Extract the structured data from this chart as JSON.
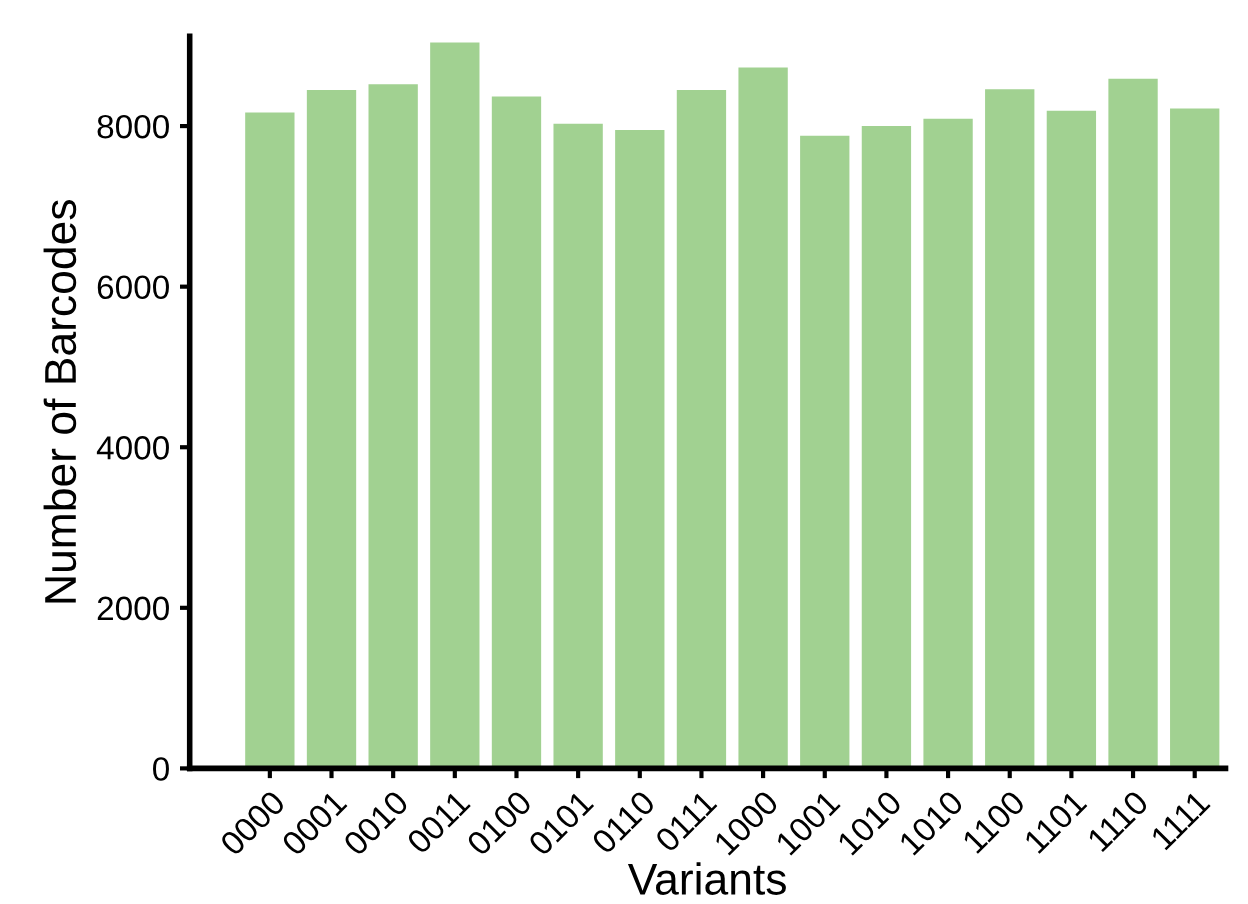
{
  "chart_data": {
    "type": "bar",
    "xlabel": "Variants",
    "ylabel": "Number of Barcodes",
    "categories": [
      "0000",
      "0001",
      "0010",
      "0011",
      "0100",
      "0101",
      "0110",
      "0111",
      "1000",
      "1001",
      "1010",
      "1010",
      "1100",
      "1101",
      "1110",
      "1111"
    ],
    "values": [
      8170,
      8450,
      8520,
      9040,
      8370,
      8030,
      7950,
      8450,
      8730,
      7880,
      8000,
      8090,
      8460,
      8190,
      8590,
      8220
    ],
    "color": "#a1d191",
    "ylim": [
      0,
      9120
    ],
    "yticks": [
      0,
      2000,
      4000,
      6000,
      8000
    ],
    "grid": false,
    "legend": false
  }
}
